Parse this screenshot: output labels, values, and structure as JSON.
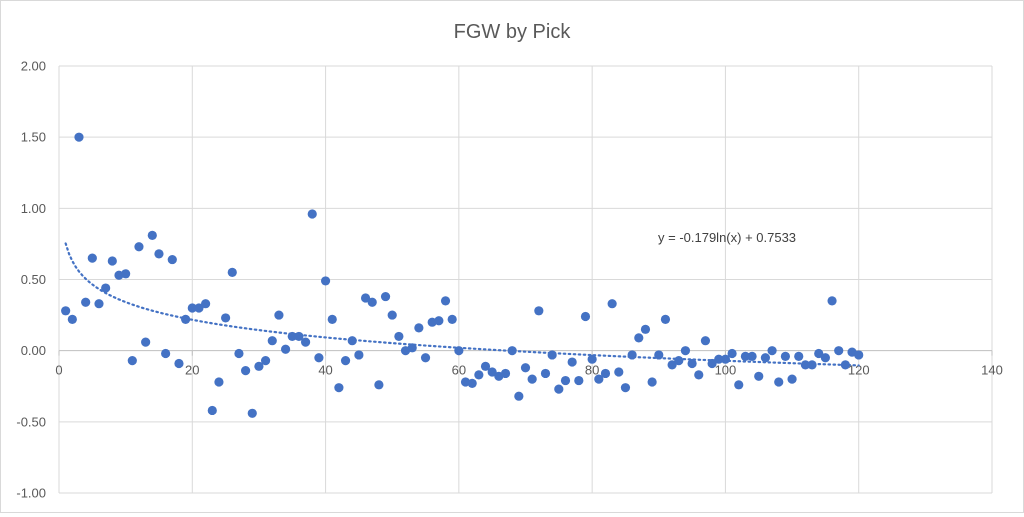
{
  "chart_data": {
    "type": "scatter",
    "title": "FGW by Pick",
    "xlabel": "",
    "ylabel": "",
    "xlim": [
      0,
      140
    ],
    "ylim": [
      -1.0,
      2.0
    ],
    "x_ticks": [
      0,
      20,
      40,
      60,
      80,
      100,
      120,
      140
    ],
    "y_ticks": [
      -1.0,
      -0.5,
      0.0,
      0.5,
      1.0,
      1.5,
      2.0
    ],
    "x_tick_labels": [
      "0",
      "20",
      "40",
      "60",
      "80",
      "100",
      "120",
      "140"
    ],
    "y_tick_labels": [
      "-1.00",
      "-0.50",
      "0.00",
      "0.50",
      "1.00",
      "1.50",
      "2.00"
    ],
    "grid": true,
    "marker_color": "#4472C4",
    "trendline": {
      "type": "logarithmic",
      "a": -0.179,
      "b": 0.7533,
      "x_range": [
        1,
        120
      ],
      "equation_label": "y = -0.179ln(x) + 0.7533",
      "style": "dotted"
    },
    "points": [
      [
        1,
        0.28
      ],
      [
        2,
        0.22
      ],
      [
        3,
        1.5
      ],
      [
        4,
        0.34
      ],
      [
        5,
        0.65
      ],
      [
        6,
        0.33
      ],
      [
        7,
        0.44
      ],
      [
        8,
        0.63
      ],
      [
        9,
        0.53
      ],
      [
        10,
        0.54
      ],
      [
        11,
        -0.07
      ],
      [
        12,
        0.73
      ],
      [
        13,
        0.06
      ],
      [
        14,
        0.81
      ],
      [
        15,
        0.68
      ],
      [
        16,
        -0.02
      ],
      [
        17,
        0.64
      ],
      [
        18,
        -0.09
      ],
      [
        19,
        0.22
      ],
      [
        20,
        0.3
      ],
      [
        21,
        0.3
      ],
      [
        22,
        0.33
      ],
      [
        23,
        -0.42
      ],
      [
        24,
        -0.22
      ],
      [
        25,
        0.23
      ],
      [
        26,
        0.55
      ],
      [
        27,
        -0.02
      ],
      [
        28,
        -0.14
      ],
      [
        29,
        -0.44
      ],
      [
        30,
        -0.11
      ],
      [
        31,
        -0.07
      ],
      [
        32,
        0.07
      ],
      [
        33,
        0.25
      ],
      [
        34,
        0.01
      ],
      [
        35,
        0.1
      ],
      [
        36,
        0.1
      ],
      [
        37,
        0.06
      ],
      [
        38,
        0.96
      ],
      [
        39,
        -0.05
      ],
      [
        40,
        0.49
      ],
      [
        41,
        0.22
      ],
      [
        42,
        -0.26
      ],
      [
        43,
        -0.07
      ],
      [
        44,
        0.07
      ],
      [
        45,
        -0.03
      ],
      [
        46,
        0.37
      ],
      [
        47,
        0.34
      ],
      [
        48,
        -0.24
      ],
      [
        49,
        0.38
      ],
      [
        50,
        0.25
      ],
      [
        51,
        0.1
      ],
      [
        52,
        0.0
      ],
      [
        53,
        0.02
      ],
      [
        54,
        0.16
      ],
      [
        55,
        -0.05
      ],
      [
        56,
        0.2
      ],
      [
        57,
        0.21
      ],
      [
        58,
        0.35
      ],
      [
        59,
        0.22
      ],
      [
        60,
        0.0
      ],
      [
        61,
        -0.22
      ],
      [
        62,
        -0.23
      ],
      [
        63,
        -0.17
      ],
      [
        64,
        -0.11
      ],
      [
        65,
        -0.15
      ],
      [
        66,
        -0.18
      ],
      [
        67,
        -0.16
      ],
      [
        68,
        0.0
      ],
      [
        69,
        -0.32
      ],
      [
        70,
        -0.12
      ],
      [
        71,
        -0.2
      ],
      [
        72,
        0.28
      ],
      [
        73,
        -0.16
      ],
      [
        74,
        -0.03
      ],
      [
        75,
        -0.27
      ],
      [
        76,
        -0.21
      ],
      [
        77,
        -0.08
      ],
      [
        78,
        -0.21
      ],
      [
        79,
        0.24
      ],
      [
        80,
        -0.06
      ],
      [
        81,
        -0.2
      ],
      [
        82,
        -0.16
      ],
      [
        83,
        0.33
      ],
      [
        84,
        -0.15
      ],
      [
        85,
        -0.26
      ],
      [
        86,
        -0.03
      ],
      [
        87,
        0.09
      ],
      [
        88,
        0.15
      ],
      [
        89,
        -0.22
      ],
      [
        90,
        -0.03
      ],
      [
        91,
        0.22
      ],
      [
        92,
        -0.1
      ],
      [
        93,
        -0.07
      ],
      [
        94,
        0.0
      ],
      [
        95,
        -0.09
      ],
      [
        96,
        -0.17
      ],
      [
        97,
        0.07
      ],
      [
        98,
        -0.09
      ],
      [
        99,
        -0.06
      ],
      [
        100,
        -0.06
      ],
      [
        101,
        -0.02
      ],
      [
        102,
        -0.24
      ],
      [
        103,
        -0.04
      ],
      [
        104,
        -0.04
      ],
      [
        105,
        -0.18
      ],
      [
        106,
        -0.05
      ],
      [
        107,
        0.0
      ],
      [
        108,
        -0.22
      ],
      [
        109,
        -0.04
      ],
      [
        110,
        -0.2
      ],
      [
        111,
        -0.04
      ],
      [
        112,
        -0.1
      ],
      [
        113,
        -0.1
      ],
      [
        114,
        -0.02
      ],
      [
        115,
        -0.05
      ],
      [
        116,
        0.35
      ],
      [
        117,
        0.0
      ],
      [
        118,
        -0.1
      ],
      [
        119,
        -0.01
      ],
      [
        120,
        -0.03
      ]
    ]
  }
}
